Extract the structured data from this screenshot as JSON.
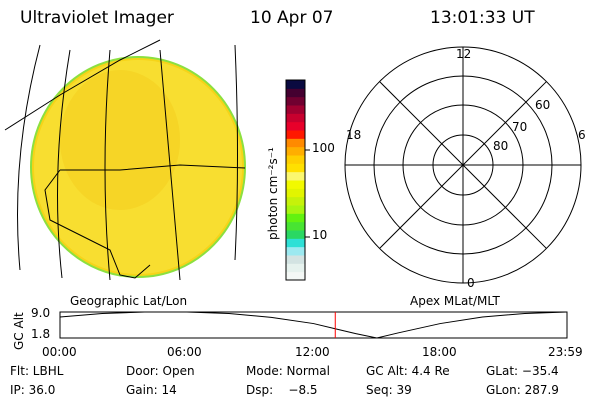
{
  "header": {
    "title": "Ultraviolet Imager",
    "date": "10 Apr 07",
    "time": "13:01:33 UT"
  },
  "colorbar": {
    "unit_label": "photon cm⁻²s⁻¹",
    "ticks": [
      "100",
      "10"
    ],
    "colors": [
      "#f4f8f6",
      "#e6f2ee",
      "#d3e3e2",
      "#9ce9f0",
      "#2ee0d6",
      "#2ad863",
      "#48e432",
      "#62f210",
      "#a8f510",
      "#c6f20a",
      "#e2f500",
      "#f2fa00",
      "#fbf770",
      "#ffe000",
      "#ffcf00",
      "#ffae00",
      "#ff8a00",
      "#ff1800",
      "#e8002a",
      "#c8002e",
      "#a00030",
      "#700030",
      "#440030",
      "#0a0a40"
    ]
  },
  "polar": {
    "mlt_labels": {
      "top": "12",
      "right": "6",
      "bottom": "0",
      "left": "18"
    },
    "lat_labels": [
      "80",
      "70",
      "60"
    ]
  },
  "panel_labels": {
    "left": "Geographic Lat/Lon",
    "right": "Apex MLat/MLT"
  },
  "chart_data": {
    "type": "line",
    "ylabel": "GC Alt",
    "ylim": [
      1.8,
      9.0
    ],
    "yticks": [
      "9.0",
      "1.8"
    ],
    "xlim": [
      0,
      24
    ],
    "xticks": [
      "00:00",
      "06:00",
      "12:00",
      "18:00",
      "23:59"
    ],
    "x": [
      0,
      2,
      4,
      6,
      8,
      10,
      12,
      13,
      14,
      15,
      16,
      18,
      20,
      22,
      23.98
    ],
    "values": [
      7.6,
      8.6,
      9.0,
      9.0,
      8.6,
      7.5,
      5.8,
      4.4,
      3.0,
      1.8,
      3.2,
      5.8,
      7.6,
      8.6,
      9.0
    ],
    "current_time_marker": 13.03,
    "marker_color": "#ff0000"
  },
  "status": {
    "row1": [
      "Flt: LBHL",
      "Door: Open",
      "Mode: Normal",
      "GC Alt: 4.4 Re",
      "GLat: −35.4"
    ],
    "row2": [
      "IP: 36.0",
      "Gain: 14",
      "Dsp:    −8.5",
      "Seq: 39",
      "GLon: 287.9"
    ]
  }
}
